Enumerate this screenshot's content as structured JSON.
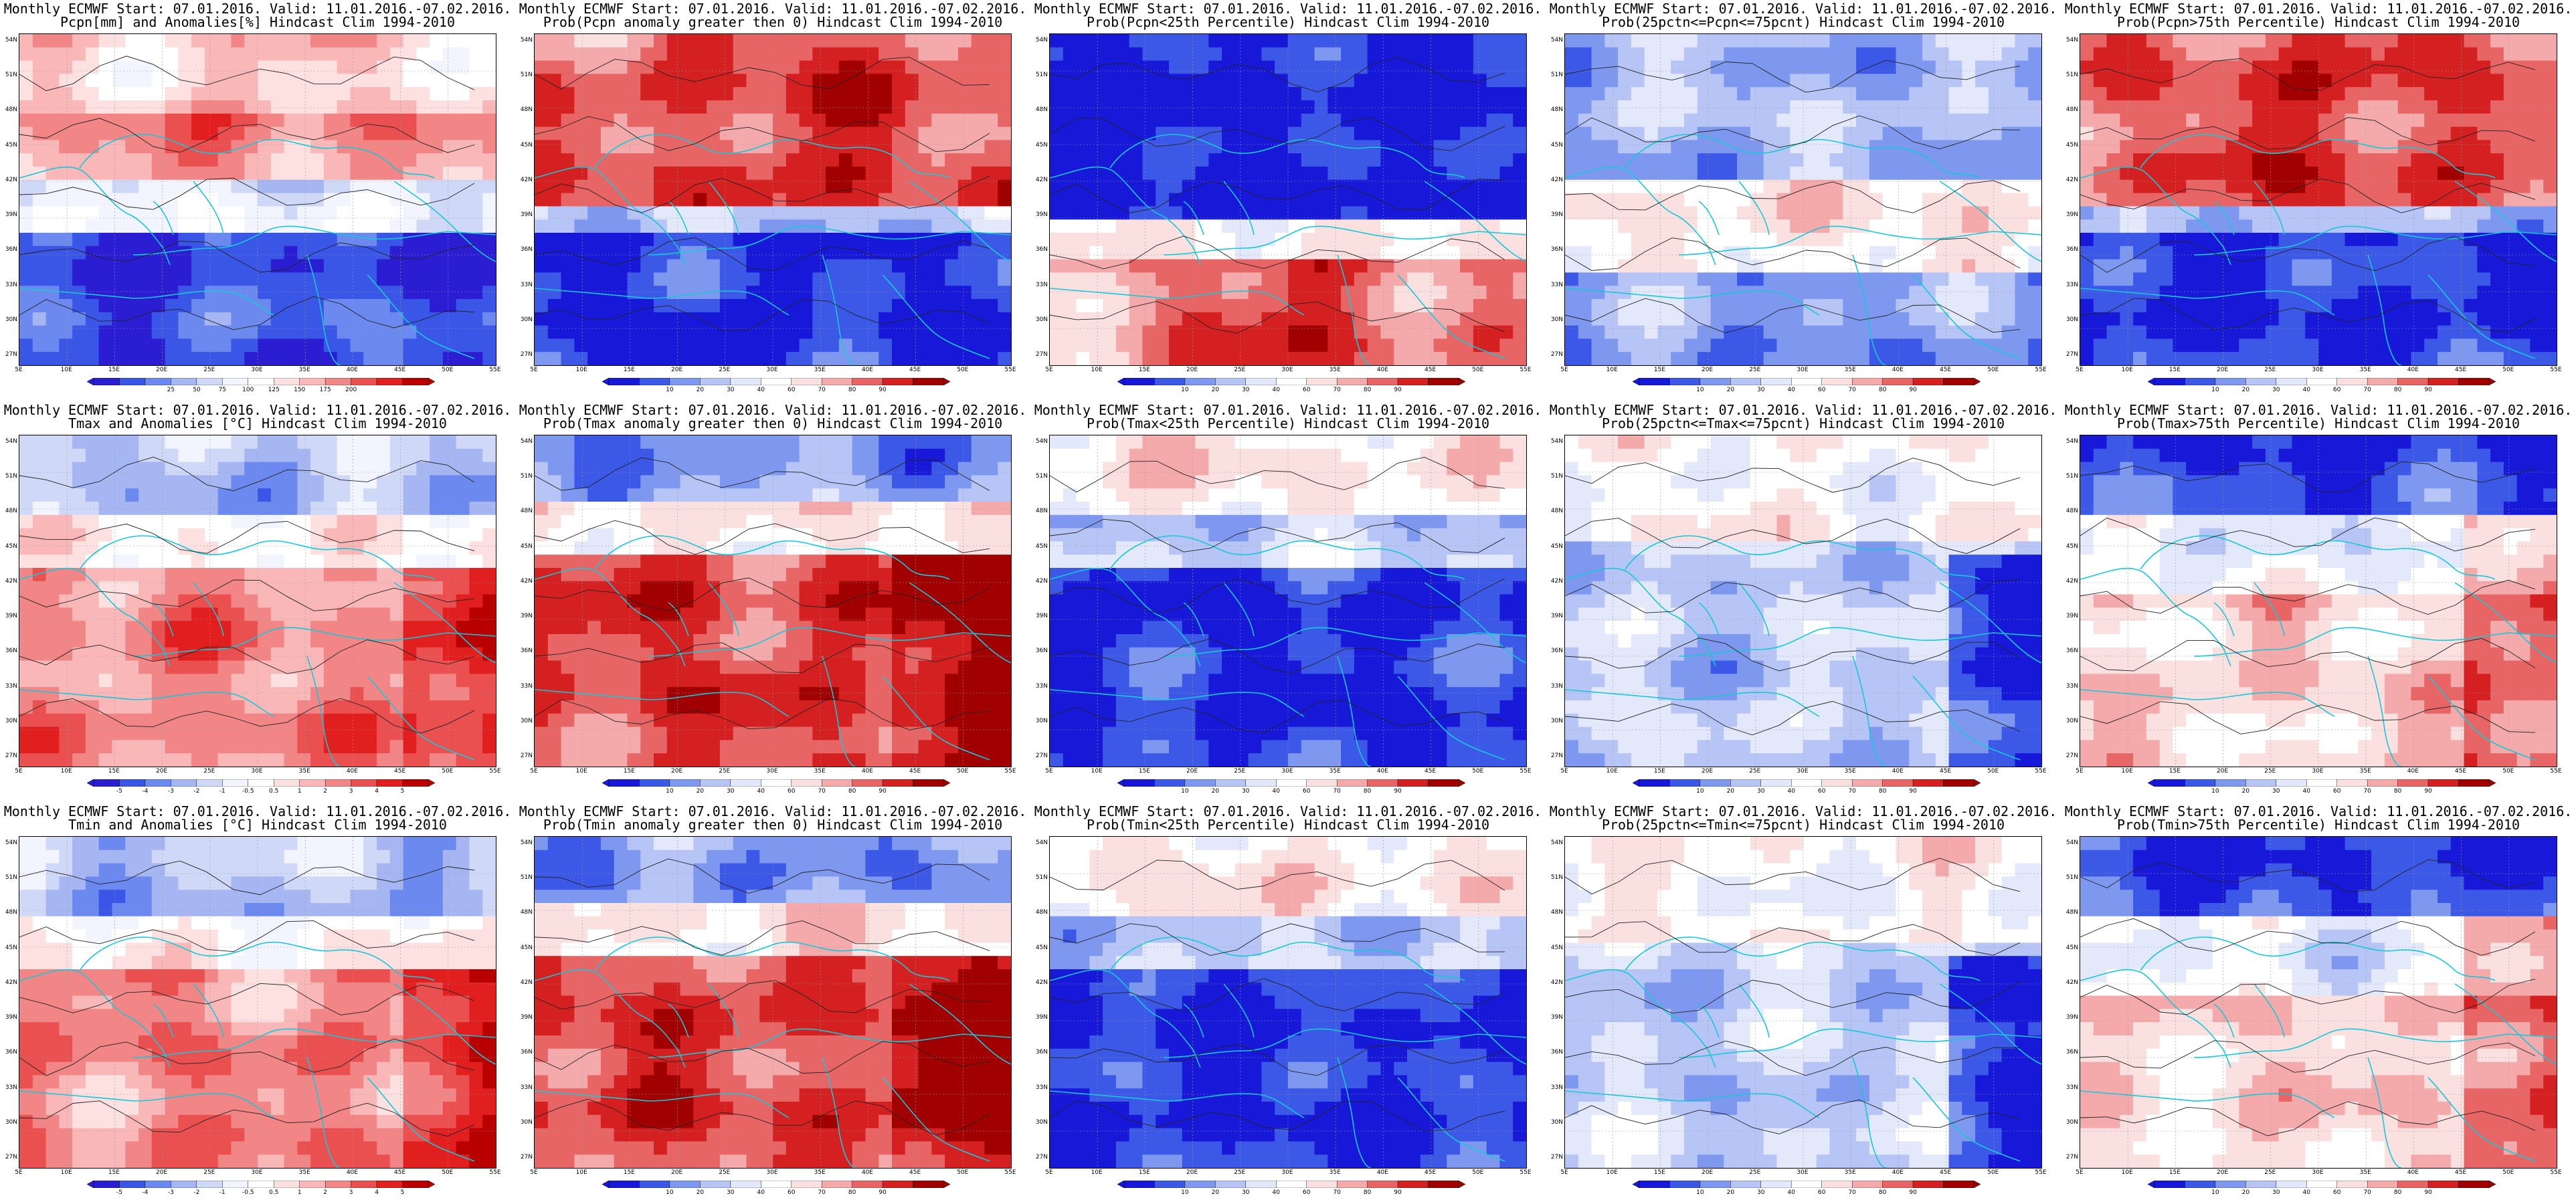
{
  "x_labels": [
    "5E",
    "10E",
    "15E",
    "20E",
    "25E",
    "30E",
    "35E",
    "40E",
    "45E",
    "50E",
    "55E"
  ],
  "y_labels": [
    "54N",
    "51N",
    "48N",
    "45N",
    "42N",
    "39N",
    "36N",
    "33N",
    "30N",
    "27N"
  ],
  "palettes": {
    "anom": [
      "#2b1dd1",
      "#3a56e6",
      "#6b89ef",
      "#a5b6f3",
      "#d0d8f8",
      "#f2f4ff",
      "#ffffff",
      "#fde0e0",
      "#f9b7b7",
      "#f28585",
      "#eb5050",
      "#e11f1f",
      "#b80000"
    ],
    "prob": [
      "#1818d8",
      "#3c58e6",
      "#7e98f0",
      "#b6c4f6",
      "#e3e8fb",
      "#ffffff",
      "#fbe0e0",
      "#f4aaaa",
      "#e86565",
      "#d42020",
      "#a00000"
    ]
  },
  "colorbar_labels": {
    "pcpn_anom": [
      "25",
      "50",
      "75",
      "100",
      "125",
      "150",
      "175",
      "200"
    ],
    "temp_anom": [
      "-5",
      "-4",
      "-3",
      "-2",
      "-1",
      "-0.5",
      "0.5",
      "1",
      "2",
      "3",
      "4",
      "5"
    ],
    "prob": [
      "10",
      "20",
      "30",
      "40",
      "60",
      "70",
      "80",
      "90"
    ]
  },
  "panels": [
    {
      "title1": "Monthly ECMWF Start: 07.01.2016. Valid: 11.01.2016.-07.02.2016.",
      "title2": "Pcpn[mm] and Anomalies[%] Hindcast Clim 1994-2010",
      "palette": "anom",
      "bar": "pcpn_anom",
      "pattern": "pcpn_anom"
    },
    {
      "title1": "Monthly ECMWF Start: 07.01.2016. Valid: 11.01.2016.-07.02.2016.",
      "title2": "Prob(Pcpn anomaly greater then 0) Hindcast Clim 1994-2010",
      "palette": "prob",
      "bar": "prob",
      "pattern": "pcpn_pos"
    },
    {
      "title1": "Monthly ECMWF Start: 07.01.2016. Valid: 11.01.2016.-07.02.2016.",
      "title2": "Prob(Pcpn<25th Percentile) Hindcast Clim 1994-2010",
      "palette": "prob",
      "bar": "prob",
      "pattern": "pcpn_low"
    },
    {
      "title1": "Monthly ECMWF Start: 07.01.2016. Valid: 11.01.2016.-07.02.2016.",
      "title2": "Prob(25pctn<=Pcpn<=75pcnt) Hindcast Clim 1994-2010",
      "palette": "prob",
      "bar": "prob",
      "pattern": "pcpn_mid"
    },
    {
      "title1": "Monthly ECMWF Start: 07.01.2016. Valid: 11.01.2016.-07.02.2016.",
      "title2": "Prob(Pcpn>75th Percentile) Hindcast Clim 1994-2010",
      "palette": "prob",
      "bar": "prob",
      "pattern": "pcpn_pos"
    },
    {
      "title1": "Monthly ECMWF Start: 07.01.2016. Valid: 11.01.2016.-07.02.2016.",
      "title2": "Tmax and Anomalies [°C] Hindcast Clim 1994-2010",
      "palette": "anom",
      "bar": "temp_anom",
      "pattern": "temp_anom"
    },
    {
      "title1": "Monthly ECMWF Start: 07.01.2016. Valid: 11.01.2016.-07.02.2016.",
      "title2": "Prob(Tmax anomaly greater then 0) Hindcast Clim 1994-2010",
      "palette": "prob",
      "bar": "prob",
      "pattern": "temp_pos"
    },
    {
      "title1": "Monthly ECMWF Start: 07.01.2016. Valid: 11.01.2016.-07.02.2016.",
      "title2": "Prob(Tmax<25th Percentile) Hindcast Clim 1994-2010",
      "palette": "prob",
      "bar": "prob",
      "pattern": "temp_low"
    },
    {
      "title1": "Monthly ECMWF Start: 07.01.2016. Valid: 11.01.2016.-07.02.2016.",
      "title2": "Prob(25pctn<=Tmax<=75pcnt) Hindcast Clim 1994-2010",
      "palette": "prob",
      "bar": "prob",
      "pattern": "temp_mid"
    },
    {
      "title1": "Monthly ECMWF Start: 07.01.2016. Valid: 11.01.2016.-07.02.2016.",
      "title2": "Prob(Tmax>75th Percentile) Hindcast Clim 1994-2010",
      "palette": "prob",
      "bar": "prob",
      "pattern": "temp_high"
    },
    {
      "title1": "Monthly ECMWF Start: 07.01.2016. Valid: 11.01.2016.-07.02.2016.",
      "title2": "Tmin and Anomalies [°C] Hindcast Clim 1994-2010",
      "palette": "anom",
      "bar": "temp_anom",
      "pattern": "temp_anom"
    },
    {
      "title1": "Monthly ECMWF Start: 07.01.2016. Valid: 11.01.2016.-07.02.2016.",
      "title2": "Prob(Tmin anomaly greater then 0) Hindcast Clim 1994-2010",
      "palette": "prob",
      "bar": "prob",
      "pattern": "temp_pos"
    },
    {
      "title1": "Monthly ECMWF Start: 07.01.2016. Valid: 11.01.2016.-07.02.2016.",
      "title2": "Prob(Tmin<25th Percentile) Hindcast Clim 1994-2010",
      "palette": "prob",
      "bar": "prob",
      "pattern": "temp_low"
    },
    {
      "title1": "Monthly ECMWF Start: 07.01.2016. Valid: 11.01.2016.-07.02.2016.",
      "title2": "Prob(25pctn<=Tmin<=75pcnt) Hindcast Clim 1994-2010",
      "palette": "prob",
      "bar": "prob",
      "pattern": "temp_mid"
    },
    {
      "title1": "Monthly ECMWF Start: 07.01.2016. Valid: 11.01.2016.-07.02.2016.",
      "title2": "Prob(Tmin>75th Percentile) Hindcast Clim 1994-2010",
      "palette": "prob",
      "bar": "prob",
      "pattern": "temp_high"
    }
  ]
}
